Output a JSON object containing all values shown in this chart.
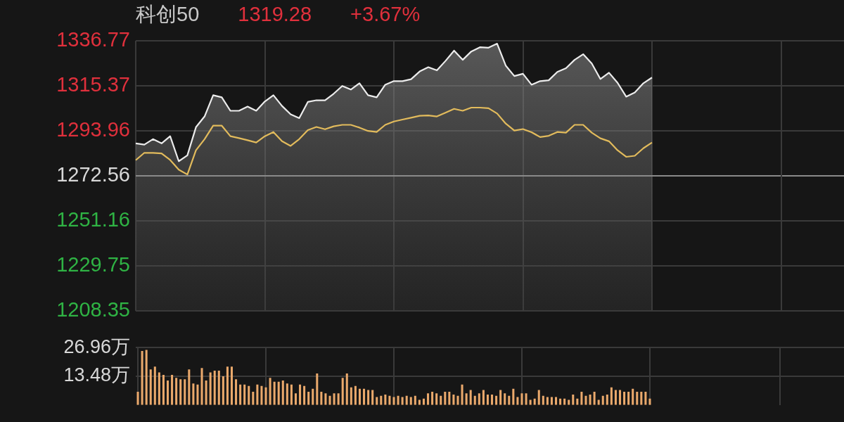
{
  "chart_data": [
    {
      "type": "line",
      "title": "科创50",
      "annotations": [
        "1319.28",
        "+3.67%"
      ],
      "marker": "none",
      "grid": true,
      "tick_labels": "y",
      "categories": [
        null,
        null,
        null,
        null,
        null,
        null,
        null,
        null,
        null,
        null,
        null,
        null,
        null,
        null,
        null,
        null,
        null,
        null,
        null,
        null,
        null,
        null,
        null,
        null,
        null,
        null,
        null,
        null,
        null,
        null,
        null,
        null,
        null,
        null,
        null,
        null,
        null,
        null,
        null,
        null,
        null,
        null,
        null,
        null,
        null,
        null,
        null,
        null,
        null,
        null,
        null,
        null,
        null,
        null,
        null,
        null,
        null,
        null,
        null,
        null,
        null
      ],
      "ylim": [
        1208.35,
        1336.77
      ],
      "yticks": [
        1208.35,
        1229.75,
        1251.16,
        1272.56,
        1293.96,
        1315.37,
        1336.77
      ],
      "ref_lines": [
        {
          "axis": "y",
          "value": 1272.56,
          "color": "#8a8a8a"
        }
      ],
      "series": [
        {
          "type": "area",
          "color": "#ececec",
          "values": [
            1288.0,
            1287.4,
            1290.0,
            1288.0,
            1291.4,
            1279.5,
            1282.3,
            1295.7,
            1300.8,
            1310.9,
            1309.9,
            1303.5,
            1303.5,
            1305.5,
            1303.5,
            1307.9,
            1310.9,
            1305.8,
            1301.8,
            1300.0,
            1307.7,
            1308.5,
            1308.5,
            1311.6,
            1315.3,
            1313.6,
            1316.6,
            1310.9,
            1309.9,
            1315.9,
            1317.6,
            1317.6,
            1318.5,
            1322.2,
            1324.2,
            1322.7,
            1327.2,
            1332.1,
            1327.7,
            1331.7,
            1333.7,
            1333.5,
            1335.4,
            1325.0,
            1320.0,
            1321.1,
            1315.9,
            1317.6,
            1318.0,
            1322.0,
            1323.7,
            1327.7,
            1330.4,
            1326.0,
            1318.6,
            1321.6,
            1316.8,
            1310.2,
            1312.2,
            1316.6,
            1319.3
          ]
        },
        {
          "type": "line",
          "color": "#e2bb5c",
          "values": [
            1280.0,
            1283.5,
            1283.5,
            1283.2,
            1280.1,
            1275.5,
            1273.2,
            1284.7,
            1290.0,
            1296.4,
            1296.4,
            1291.4,
            1290.5,
            1289.5,
            1288.4,
            1291.4,
            1293.4,
            1289.0,
            1286.8,
            1290.0,
            1294.3,
            1295.8,
            1294.7,
            1296.1,
            1296.8,
            1296.8,
            1295.5,
            1293.9,
            1293.4,
            1296.8,
            1298.4,
            1299.3,
            1300.2,
            1301.1,
            1301.3,
            1300.8,
            1302.6,
            1304.4,
            1303.5,
            1305.0,
            1305.0,
            1304.7,
            1302.2,
            1297.4,
            1294.1,
            1294.8,
            1293.3,
            1291.0,
            1291.6,
            1293.4,
            1293.1,
            1296.8,
            1296.8,
            1293.1,
            1290.4,
            1289.0,
            1284.7,
            1281.6,
            1282.1,
            1285.7,
            1288.4
          ]
        }
      ]
    },
    {
      "type": "bar",
      "color": "#eaa96c",
      "grid": true,
      "tick_labels": "y",
      "categories": [
        null,
        null,
        null,
        null,
        null,
        null,
        null,
        null,
        null,
        null,
        null,
        null,
        null,
        null,
        null,
        null,
        null,
        null,
        null,
        null,
        null,
        null,
        null,
        null,
        null,
        null,
        null,
        null,
        null,
        null,
        null,
        null,
        null,
        null,
        null,
        null,
        null,
        null,
        null,
        null,
        null,
        null,
        null,
        null,
        null,
        null,
        null,
        null,
        null,
        null,
        null,
        null,
        null,
        null,
        null,
        null,
        null,
        null,
        null,
        null,
        null,
        null,
        null,
        null,
        null,
        null,
        null,
        null,
        null,
        null,
        null,
        null,
        null,
        null,
        null,
        null,
        null,
        null,
        null,
        null,
        null,
        null,
        null,
        null,
        null,
        null,
        null,
        null,
        null,
        null,
        null,
        null,
        null,
        null,
        null,
        null,
        null,
        null,
        null,
        null,
        null,
        null,
        null,
        null,
        null,
        null,
        null,
        null,
        null,
        null,
        null,
        null,
        null,
        null,
        null,
        null,
        null,
        null,
        null,
        null,
        null
      ],
      "ylim": [
        0,
        26.96
      ],
      "yticks": [
        {
          "value": 13.48,
          "label": "13.48万"
        },
        {
          "value": 26.96,
          "label": "26.96万"
        }
      ],
      "values": [
        6.2,
        25.4,
        25.9,
        16.7,
        18.0,
        15.3,
        14.1,
        11.5,
        14.1,
        12.7,
        12.1,
        12.1,
        16.7,
        10.1,
        9.6,
        17.4,
        11.5,
        15.3,
        16.1,
        16.1,
        13.5,
        18.0,
        18.0,
        12.1,
        9.6,
        9.6,
        8.9,
        6.2,
        9.6,
        8.9,
        8.3,
        12.7,
        10.9,
        10.9,
        11.5,
        10.1,
        9.6,
        5.5,
        9.6,
        8.9,
        6.2,
        7.6,
        14.8,
        6.2,
        5.5,
        4.3,
        5.5,
        5.5,
        12.7,
        14.8,
        8.3,
        8.9,
        7.6,
        7.6,
        7.0,
        7.0,
        3.7,
        4.3,
        4.9,
        4.3,
        3.7,
        4.3,
        3.7,
        4.3,
        3.7,
        4.3,
        2.4,
        3.0,
        5.5,
        6.2,
        5.5,
        4.3,
        6.2,
        6.2,
        4.9,
        4.3,
        9.6,
        5.5,
        7.0,
        4.3,
        5.5,
        7.0,
        4.9,
        4.9,
        4.3,
        7.0,
        5.5,
        4.3,
        7.6,
        3.7,
        5.5,
        5.5,
        2.4,
        3.0,
        7.0,
        4.3,
        3.7,
        3.7,
        3.7,
        3.0,
        3.0,
        2.4,
        4.9,
        3.0,
        6.2,
        4.3,
        4.9,
        6.2,
        2.4,
        4.3,
        4.9,
        8.3,
        7.0,
        7.0,
        6.2,
        6.2,
        7.6,
        6.2,
        6.2,
        6.2,
        3.0
      ]
    }
  ]
}
